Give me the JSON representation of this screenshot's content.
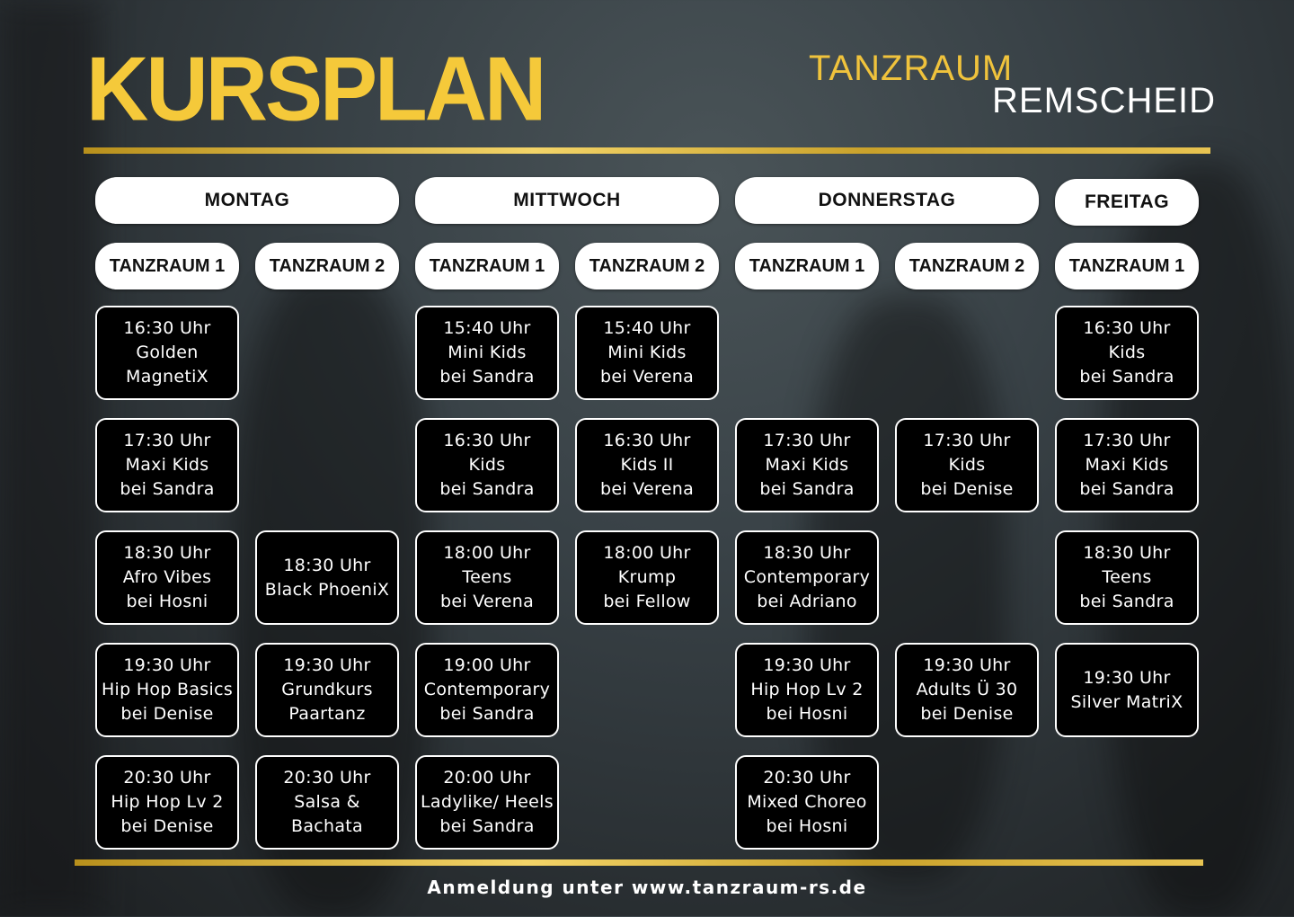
{
  "title": "KURSPLAN",
  "brand": {
    "line1": "TANZRAUM",
    "line2": "REMSCHEID"
  },
  "days": [
    {
      "label": "MONTAG"
    },
    {
      "label": "MITTWOCH"
    },
    {
      "label": "DONNERSTAG"
    },
    {
      "label": "FREITAG"
    }
  ],
  "rooms": [
    "TANZRAUM 1",
    "TANZRAUM 2",
    "TANZRAUM 1",
    "TANZRAUM 2",
    "TANZRAUM 1",
    "TANZRAUM 2",
    "TANZRAUM 1"
  ],
  "columns": [
    [
      [
        "16:30 Uhr",
        "Golden",
        "MagnetiX"
      ],
      [
        "17:30 Uhr",
        "Maxi Kids",
        "bei Sandra"
      ],
      [
        "18:30 Uhr",
        "Afro Vibes",
        "bei Hosni"
      ],
      [
        "19:30 Uhr",
        "Hip Hop Basics",
        "bei Denise"
      ],
      [
        "20:30 Uhr",
        "Hip Hop Lv 2",
        "bei Denise"
      ]
    ],
    [
      null,
      null,
      [
        "18:30 Uhr",
        "Black PhoeniX"
      ],
      [
        "19:30 Uhr",
        "Grundkurs",
        "Paartanz"
      ],
      [
        "20:30 Uhr",
        "Salsa &",
        "Bachata"
      ]
    ],
    [
      [
        "15:40 Uhr",
        "Mini Kids",
        "bei Sandra"
      ],
      [
        "16:30 Uhr",
        "Kids",
        "bei Sandra"
      ],
      [
        "18:00 Uhr",
        "Teens",
        "bei Verena"
      ],
      [
        "19:00 Uhr",
        "Contemporary",
        "bei Sandra"
      ],
      [
        "20:00 Uhr",
        "Ladylike/ Heels",
        "bei Sandra"
      ]
    ],
    [
      [
        "15:40 Uhr",
        "Mini Kids",
        "bei Verena"
      ],
      [
        "16:30 Uhr",
        "Kids II",
        "bei Verena"
      ],
      [
        "18:00 Uhr",
        "Krump",
        "bei Fellow"
      ],
      null,
      null
    ],
    [
      null,
      [
        "17:30 Uhr",
        "Maxi Kids",
        "bei Sandra"
      ],
      [
        "18:30 Uhr",
        "Contemporary",
        "bei Adriano"
      ],
      [
        "19:30 Uhr",
        "Hip Hop Lv 2",
        "bei Hosni"
      ],
      [
        "20:30 Uhr",
        "Mixed Choreo",
        "bei Hosni"
      ]
    ],
    [
      null,
      [
        "17:30 Uhr",
        "Kids",
        "bei Denise"
      ],
      null,
      [
        "19:30 Uhr",
        "Adults Ü 30",
        "bei Denise"
      ],
      null
    ],
    [
      [
        "16:30 Uhr",
        "Kids",
        "bei Sandra"
      ],
      [
        "17:30 Uhr",
        "Maxi Kids",
        "bei Sandra"
      ],
      [
        "18:30 Uhr",
        "Teens",
        "bei Sandra"
      ],
      [
        "19:30 Uhr",
        "Silver MatriX"
      ],
      null
    ]
  ],
  "footer": "Anmeldung unter www.tanzraum-rs.de",
  "colors": {
    "accent": "#f5c93a",
    "background": "#2f363a"
  }
}
